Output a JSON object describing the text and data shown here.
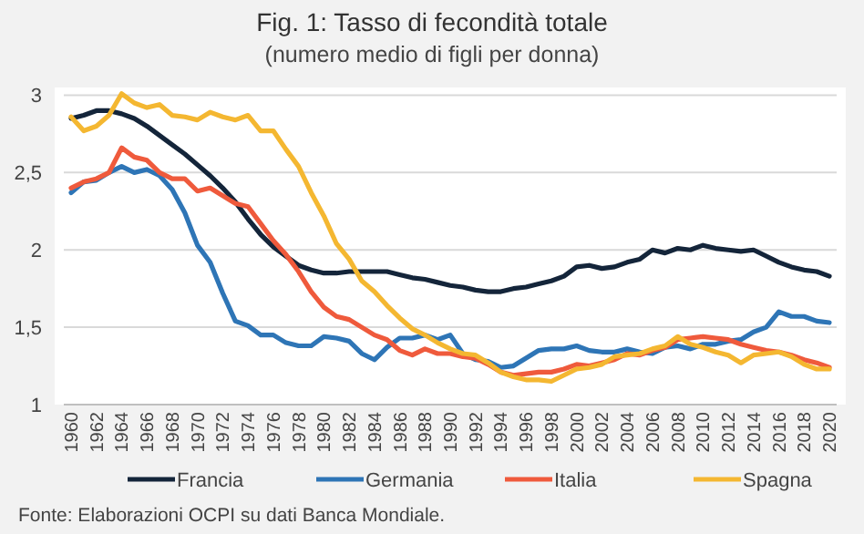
{
  "chart_data": {
    "type": "line",
    "title": "Fig. 1: Tasso di fecondità totale",
    "subtitle": "(numero medio di figli per donna)",
    "annotations": [
      "Fonte: Elaborazioni OCPI su dati Banca Mondiale."
    ],
    "categories": [
      "1960",
      null,
      "1962",
      null,
      "1964",
      null,
      "1966",
      null,
      "1968",
      null,
      "1970",
      null,
      "1972",
      null,
      "1974",
      null,
      "1976",
      null,
      "1978",
      null,
      "1980",
      null,
      "1982",
      null,
      "1984",
      null,
      "1986",
      null,
      "1988",
      null,
      "1990",
      null,
      "1992",
      null,
      "1994",
      null,
      "1996",
      null,
      "1998",
      null,
      "2000",
      null,
      "2002",
      null,
      "2004",
      null,
      "2006",
      null,
      "2008",
      null,
      "2010",
      null,
      "2012",
      null,
      "2014",
      null,
      "2016",
      null,
      "2018",
      null,
      "2020"
    ],
    "ylim": [
      1,
      3.05
    ],
    "yticks": [
      1,
      {
        "value": 1.5,
        "label": "1,5"
      },
      2,
      {
        "value": 2.5,
        "label": "2,5"
      },
      3
    ],
    "grid": "y",
    "legend": "bottom",
    "marker": "none",
    "line_style": "solid",
    "series": [
      {
        "name": "Francia",
        "color": "#14253a",
        "values": [
          2.85,
          2.87,
          2.9,
          2.9,
          2.88,
          2.85,
          2.8,
          2.74,
          2.68,
          2.62,
          2.55,
          2.48,
          2.4,
          2.31,
          2.2,
          2.1,
          2.02,
          1.96,
          1.9,
          1.87,
          1.85,
          1.85,
          1.86,
          1.86,
          1.86,
          1.86,
          1.84,
          1.82,
          1.81,
          1.79,
          1.77,
          1.76,
          1.74,
          1.73,
          1.73,
          1.75,
          1.76,
          1.78,
          1.8,
          1.83,
          1.89,
          1.9,
          1.88,
          1.89,
          1.92,
          1.94,
          2.0,
          1.98,
          2.01,
          2.0,
          2.03,
          2.01,
          2.0,
          1.99,
          2.0,
          1.96,
          1.92,
          1.89,
          1.87,
          1.86,
          1.83
        ]
      },
      {
        "name": "Germania",
        "color": "#2e75b6",
        "values": [
          2.37,
          2.44,
          2.45,
          2.5,
          2.54,
          2.5,
          2.52,
          2.48,
          2.39,
          2.24,
          2.03,
          1.92,
          1.72,
          1.54,
          1.51,
          1.45,
          1.45,
          1.4,
          1.38,
          1.38,
          1.44,
          1.43,
          1.41,
          1.33,
          1.29,
          1.37,
          1.43,
          1.43,
          1.45,
          1.42,
          1.45,
          1.33,
          1.29,
          1.28,
          1.24,
          1.25,
          1.3,
          1.35,
          1.36,
          1.36,
          1.38,
          1.35,
          1.34,
          1.34,
          1.36,
          1.34,
          1.33,
          1.37,
          1.38,
          1.36,
          1.39,
          1.39,
          1.41,
          1.42,
          1.47,
          1.5,
          1.6,
          1.57,
          1.57,
          1.54,
          1.53
        ]
      },
      {
        "name": "Italia",
        "color": "#ef5a3c",
        "values": [
          2.4,
          2.44,
          2.46,
          2.5,
          2.66,
          2.6,
          2.58,
          2.5,
          2.46,
          2.46,
          2.38,
          2.4,
          2.35,
          2.3,
          2.28,
          2.17,
          2.06,
          1.97,
          1.86,
          1.73,
          1.63,
          1.57,
          1.55,
          1.5,
          1.45,
          1.42,
          1.35,
          1.32,
          1.36,
          1.33,
          1.33,
          1.31,
          1.3,
          1.26,
          1.21,
          1.19,
          1.2,
          1.21,
          1.21,
          1.23,
          1.26,
          1.25,
          1.27,
          1.29,
          1.33,
          1.32,
          1.35,
          1.37,
          1.42,
          1.43,
          1.44,
          1.43,
          1.42,
          1.39,
          1.37,
          1.35,
          1.34,
          1.32,
          1.29,
          1.27,
          1.24
        ]
      },
      {
        "name": "Spagna",
        "color": "#f4b731",
        "values": [
          2.86,
          2.77,
          2.8,
          2.87,
          3.01,
          2.95,
          2.92,
          2.94,
          2.87,
          2.86,
          2.84,
          2.89,
          2.86,
          2.84,
          2.87,
          2.77,
          2.77,
          2.65,
          2.54,
          2.37,
          2.22,
          2.04,
          1.94,
          1.8,
          1.73,
          1.64,
          1.56,
          1.49,
          1.45,
          1.4,
          1.36,
          1.33,
          1.32,
          1.27,
          1.21,
          1.18,
          1.16,
          1.16,
          1.15,
          1.19,
          1.23,
          1.24,
          1.26,
          1.31,
          1.32,
          1.33,
          1.36,
          1.38,
          1.44,
          1.39,
          1.37,
          1.34,
          1.32,
          1.27,
          1.32,
          1.33,
          1.34,
          1.31,
          1.26,
          1.23,
          1.23
        ]
      }
    ]
  }
}
